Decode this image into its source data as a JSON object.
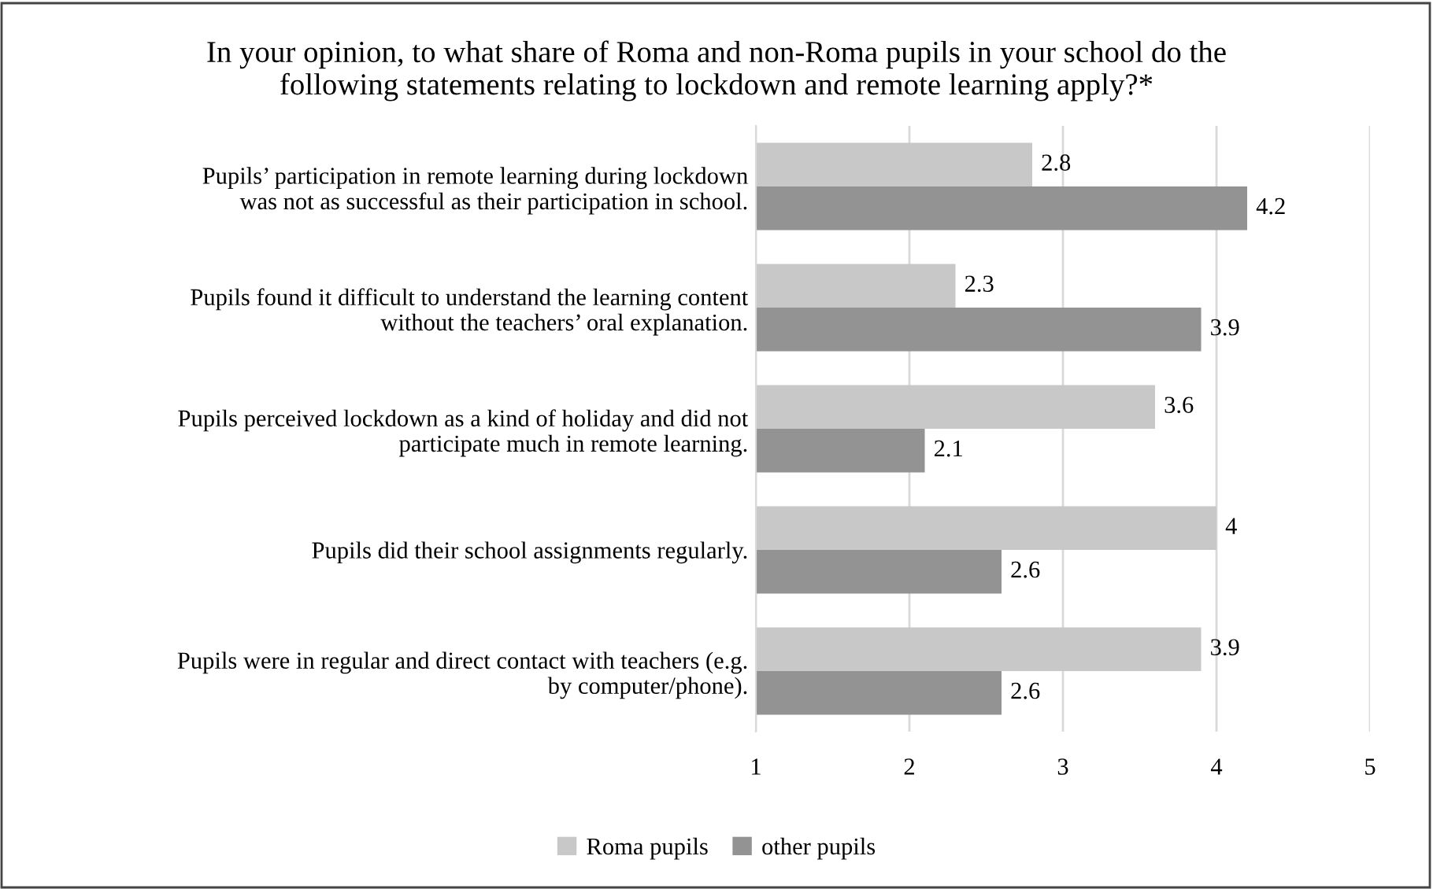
{
  "chart_data": {
    "type": "bar",
    "orientation": "horizontal",
    "title": "In your opinion, to what share of Roma and non-Roma pupils in your school do the\nfollowing statements relating to lockdown and remote learning apply?*",
    "categories": [
      "Pupils’ participation in remote learning during lockdown\nwas not as successful as their participation in school.",
      "Pupils found it difficult to understand the learning content\nwithout the teachers’ oral explanation.",
      "Pupils perceived lockdown as a kind of holiday and did not\nparticipate much in remote learning.",
      "Pupils did their school assignments regularly.",
      "Pupils were in regular and direct contact with teachers (e.g.\nby computer/phone)."
    ],
    "series": [
      {
        "name": "Roma pupils",
        "color": "#c8c8c8",
        "values": [
          2.8,
          2.3,
          3.6,
          4,
          3.9
        ]
      },
      {
        "name": "other pupils",
        "color": "#939393",
        "values": [
          4.2,
          3.9,
          2.1,
          2.6,
          2.6
        ]
      }
    ],
    "xlim": [
      1,
      5
    ],
    "xticks": [
      1,
      2,
      3,
      4,
      5
    ],
    "grid": "x",
    "legend": "bottom",
    "data_labels": true
  }
}
